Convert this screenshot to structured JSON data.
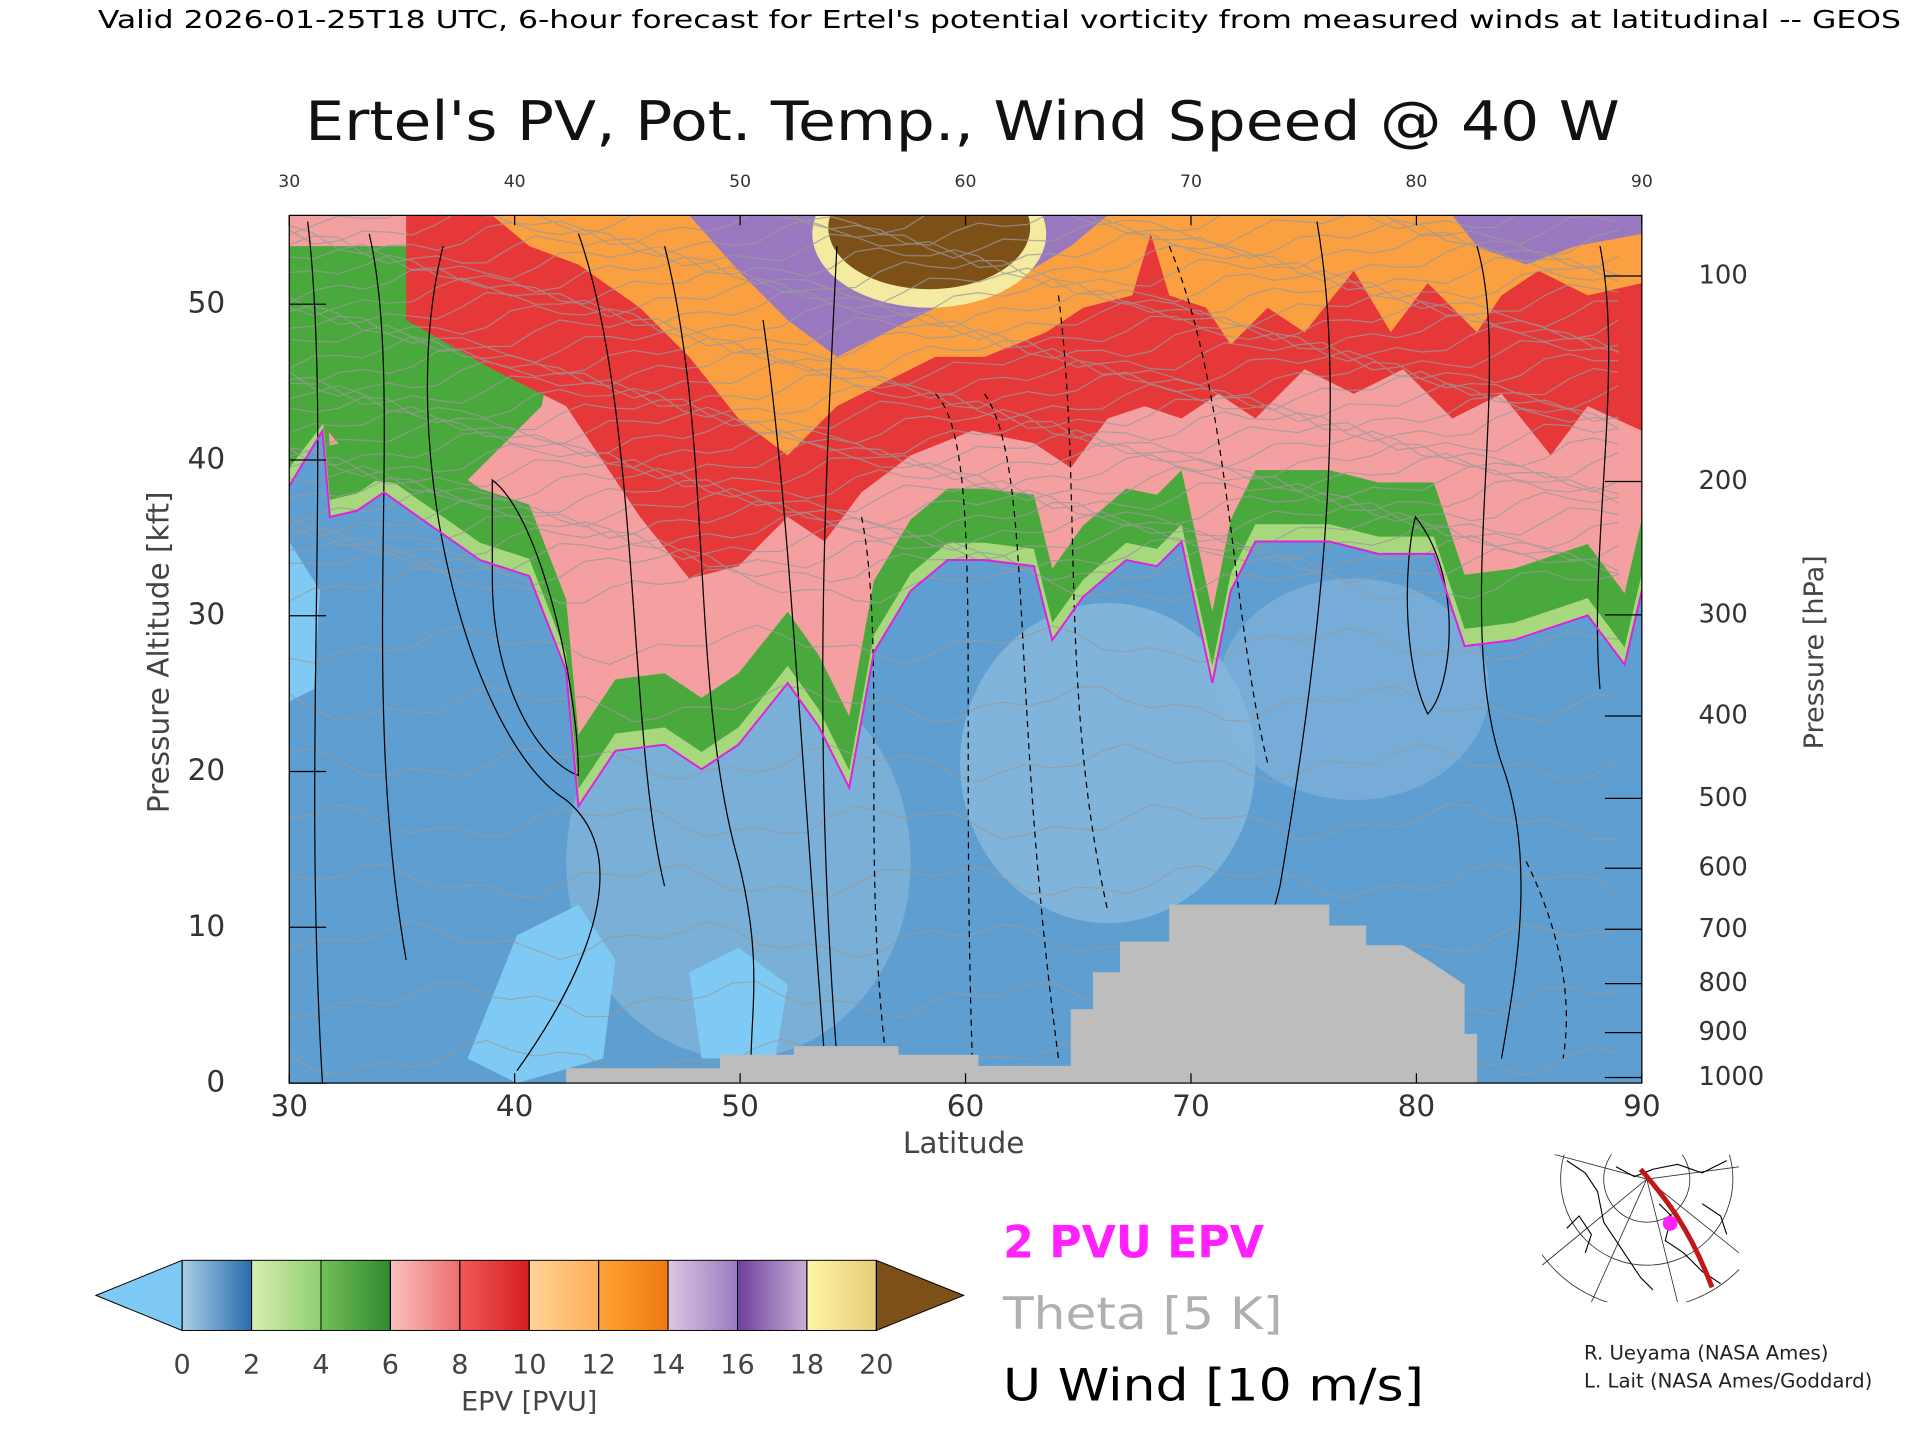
{
  "header": "Valid 2026-01-25T18 UTC, 6-hour forecast for Ertel's potential vorticity from measured winds at latitudinal -- GEOS",
  "chart_data": {
    "type": "contour",
    "title": "Ertel's PV, Pot. Temp., Wind Speed @ 40 W",
    "x_label": "Latitude",
    "y_label": "Pressure Altitude [kft]",
    "y2_label": "Pressure [hPa]",
    "xlim": [
      30,
      90
    ],
    "xticks": [
      30,
      40,
      50,
      60,
      70,
      80,
      90
    ],
    "ylim": [
      0,
      55.7
    ],
    "yticks": [
      0,
      10,
      20,
      30,
      40,
      50
    ],
    "y2lim": [
      1013,
      80
    ],
    "y2scale": "pressure-altitude",
    "y2ticks": [
      100,
      200,
      300,
      400,
      500,
      600,
      700,
      800,
      900,
      1000
    ],
    "colorbar": {
      "label": "EPV [PVU]",
      "ticks": [
        0,
        2,
        4,
        6,
        8,
        10,
        12,
        14,
        16,
        18,
        20
      ],
      "colors": [
        [
          "#a9d0e6",
          "#2a6aad"
        ],
        [
          "#d8eeb0",
          "#8fcf72"
        ],
        [
          "#74bf58",
          "#2e8b2e"
        ],
        [
          "#f9c0c0",
          "#ee6e6e"
        ],
        [
          "#f05a5a",
          "#d41e1e"
        ],
        [
          "#ffd596",
          "#ffae58"
        ],
        [
          "#ffa236",
          "#ef7a0e"
        ],
        [
          "#ddc6e4",
          "#9a7bc0"
        ],
        [
          "#6e3f9e",
          "#c9b0d6"
        ],
        [
          "#fff6a8",
          "#e6cc7a"
        ]
      ],
      "under_color": "#7fcaf4",
      "over_color": "#7d5018"
    },
    "legend": [
      {
        "label": "2 PVU EPV",
        "color": "#ff22ff"
      },
      {
        "label": "Theta [5 K]",
        "color": "#b0b0b0"
      },
      {
        "label": "U Wind [10 m/s]",
        "color": "#000000"
      }
    ]
  },
  "credits": [
    "R. Ueyama (NASA Ames)",
    "L. Lait (NASA Ames/Goddard)"
  ]
}
